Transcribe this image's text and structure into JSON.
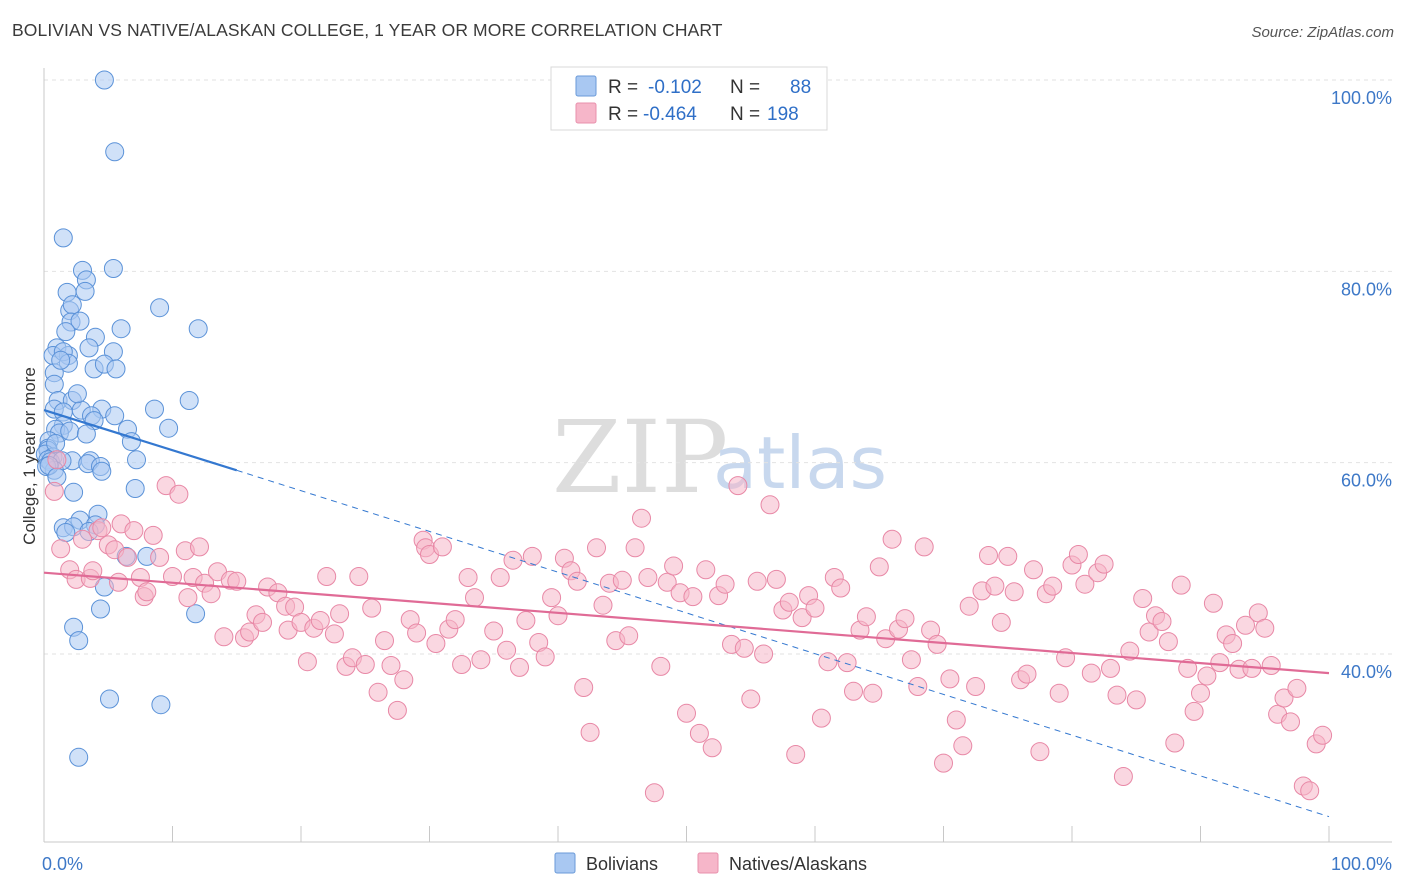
{
  "chart_data": {
    "type": "scatter",
    "title": "BOLIVIAN VS NATIVE/ALASKAN COLLEGE, 1 YEAR OR MORE CORRELATION CHART",
    "source": "Source: ZipAtlas.com",
    "xlabel": "",
    "ylabel": "College, 1 year or more",
    "xlim": [
      0,
      100
    ],
    "ylim": [
      22,
      102
    ],
    "x_tick_labels": [
      "0.0%",
      "100.0%"
    ],
    "y_ticks": [
      40,
      60,
      80,
      100
    ],
    "y_tick_labels": [
      "40.0%",
      "60.0%",
      "80.0%",
      "100.0%"
    ],
    "watermark": {
      "zip": "ZIP",
      "atlas": "atlas"
    },
    "legend": {
      "r_label": "R =",
      "n_label": "N =",
      "entries": [
        {
          "r": "-0.102",
          "n": "88",
          "color": "#a9c8f2"
        },
        {
          "r": "-0.464",
          "n": "198",
          "color": "#f6b6c9"
        }
      ]
    },
    "series": [
      {
        "name": "Bolivians",
        "color": "#a9c8f2",
        "stroke": "#5b92d8",
        "trend": {
          "x0": 0,
          "y0": 65.5,
          "x1": 15,
          "y1": 59.2,
          "dash_to_x": 100,
          "dash_to_y": 23,
          "color": "#3478d0"
        },
        "points": [
          [
            4.7,
            100
          ],
          [
            5.5,
            92.5
          ],
          [
            1.5,
            83.5
          ],
          [
            5.4,
            80.3
          ],
          [
            3.0,
            80.1
          ],
          [
            3.3,
            79.1
          ],
          [
            1.8,
            77.8
          ],
          [
            3.2,
            77.9
          ],
          [
            9.0,
            76.2
          ],
          [
            2.0,
            75.9
          ],
          [
            2.2,
            76.5
          ],
          [
            2.1,
            74.7
          ],
          [
            2.8,
            74.8
          ],
          [
            6.0,
            74
          ],
          [
            12,
            74
          ],
          [
            4.0,
            73.1
          ],
          [
            1.0,
            72
          ],
          [
            0.7,
            71.2
          ],
          [
            1.9,
            71.2
          ],
          [
            5.4,
            71.6
          ],
          [
            1.5,
            71.6
          ],
          [
            3.5,
            72
          ],
          [
            1.9,
            70.4
          ],
          [
            3.9,
            69.8
          ],
          [
            4.7,
            70.3
          ],
          [
            0.8,
            69.4
          ],
          [
            0.8,
            68.2
          ],
          [
            1.1,
            66.5
          ],
          [
            2.2,
            66.5
          ],
          [
            4.5,
            65.6
          ],
          [
            0.8,
            65.6
          ],
          [
            1.5,
            65.3
          ],
          [
            2.9,
            65.5
          ],
          [
            8.6,
            65.6
          ],
          [
            11.3,
            66.5
          ],
          [
            5.5,
            64.9
          ],
          [
            3.7,
            64.9
          ],
          [
            3.9,
            64.4
          ],
          [
            1.5,
            63.9
          ],
          [
            0.9,
            63.5
          ],
          [
            1.2,
            63.1
          ],
          [
            0.4,
            62.3
          ],
          [
            9.7,
            63.6
          ],
          [
            6.5,
            63.5
          ],
          [
            2.0,
            63.3
          ],
          [
            0.3,
            61.5
          ],
          [
            0.3,
            61.3
          ],
          [
            0.1,
            60.9
          ],
          [
            0.7,
            60.6
          ],
          [
            0.3,
            60.3
          ],
          [
            2.2,
            60.2
          ],
          [
            3.6,
            60.2
          ],
          [
            7.2,
            60.3
          ],
          [
            0.5,
            60.1
          ],
          [
            1.4,
            60.2
          ],
          [
            3.4,
            59.9
          ],
          [
            4.4,
            59.6
          ],
          [
            4.5,
            59.1
          ],
          [
            0.8,
            59.2
          ],
          [
            0.2,
            59.6
          ],
          [
            0.4,
            59.7
          ],
          [
            7.1,
            57.3
          ],
          [
            2.3,
            56.9
          ],
          [
            4.2,
            54.6
          ],
          [
            2.8,
            54.0
          ],
          [
            4.0,
            53.5
          ],
          [
            1.5,
            53.2
          ],
          [
            2.3,
            53.3
          ],
          [
            3.5,
            52.8
          ],
          [
            1.7,
            52.7
          ],
          [
            6.4,
            50.2
          ],
          [
            8.0,
            50.2
          ],
          [
            4.7,
            47
          ],
          [
            4.4,
            44.7
          ],
          [
            11.8,
            44.2
          ],
          [
            2.3,
            42.8
          ],
          [
            2.7,
            41.4
          ],
          [
            5.1,
            35.3
          ],
          [
            9.1,
            34.7
          ],
          [
            2.7,
            29.2
          ],
          [
            1.7,
            73.7
          ],
          [
            2.6,
            67.2
          ],
          [
            5.6,
            69.8
          ],
          [
            1.3,
            70.7
          ],
          [
            3.3,
            63.0
          ],
          [
            6.8,
            62.2
          ],
          [
            1.0,
            58.5
          ],
          [
            0.9,
            62.0
          ]
        ]
      },
      {
        "name": "Natives/Alaskans",
        "color": "#f6b6c9",
        "stroke": "#e888a6",
        "trend": {
          "x0": 0,
          "y0": 48.5,
          "x1": 100,
          "y1": 38.0,
          "color": "#e06b96"
        },
        "points": [
          [
            0.8,
            57
          ],
          [
            1.3,
            51
          ],
          [
            1.0,
            60.3
          ],
          [
            2,
            48.8
          ],
          [
            2.5,
            47.8
          ],
          [
            3,
            52
          ],
          [
            3.6,
            47.9
          ],
          [
            3.8,
            48.7
          ],
          [
            4.2,
            52.9
          ],
          [
            4.5,
            53.2
          ],
          [
            5,
            51.4
          ],
          [
            5.5,
            50.9
          ],
          [
            5.8,
            47.5
          ],
          [
            6,
            53.6
          ],
          [
            6.5,
            50.1
          ],
          [
            7,
            52.9
          ],
          [
            7.5,
            48
          ],
          [
            7.8,
            46
          ],
          [
            8,
            46.5
          ],
          [
            8.5,
            52.4
          ],
          [
            9,
            50.1
          ],
          [
            9.5,
            57.6
          ],
          [
            10,
            48.1
          ],
          [
            10.5,
            56.7
          ],
          [
            11,
            50.8
          ],
          [
            11.2,
            45.9
          ],
          [
            11.6,
            48
          ],
          [
            12.1,
            51.2
          ],
          [
            12.5,
            47.4
          ],
          [
            13,
            46.3
          ],
          [
            13.5,
            48.6
          ],
          [
            14,
            41.8
          ],
          [
            14.5,
            47.7
          ],
          [
            15,
            47.6
          ],
          [
            15.6,
            41.7
          ],
          [
            16,
            42.3
          ],
          [
            16.5,
            44.1
          ],
          [
            17,
            43.3
          ],
          [
            17.4,
            47
          ],
          [
            18.2,
            46.4
          ],
          [
            18.8,
            45.0
          ],
          [
            19,
            42.5
          ],
          [
            19.5,
            44.9
          ],
          [
            20,
            43.3
          ],
          [
            20.5,
            39.2
          ],
          [
            21,
            42.7
          ],
          [
            21.5,
            43.5
          ],
          [
            22,
            48.1
          ],
          [
            22.6,
            42.1
          ],
          [
            23,
            44.2
          ],
          [
            23.5,
            38.7
          ],
          [
            24,
            39.6
          ],
          [
            24.5,
            48.1
          ],
          [
            25,
            38.9
          ],
          [
            25.5,
            44.8
          ],
          [
            26,
            36.0
          ],
          [
            26.5,
            41.4
          ],
          [
            27,
            38.8
          ],
          [
            27.5,
            34.1
          ],
          [
            28,
            37.3
          ],
          [
            28.5,
            43.6
          ],
          [
            29,
            42.2
          ],
          [
            29.5,
            51.9
          ],
          [
            29.7,
            51.1
          ],
          [
            30,
            50.4
          ],
          [
            30.5,
            41.1
          ],
          [
            31,
            51.2
          ],
          [
            31.5,
            42.6
          ],
          [
            32,
            43.6
          ],
          [
            32.5,
            38.9
          ],
          [
            33,
            48
          ],
          [
            33.5,
            45.9
          ],
          [
            34,
            39.4
          ],
          [
            35,
            42.4
          ],
          [
            35.5,
            48
          ],
          [
            36,
            40.4
          ],
          [
            36.5,
            49.8
          ],
          [
            37,
            38.6
          ],
          [
            37.5,
            43.5
          ],
          [
            38,
            50.2
          ],
          [
            38.5,
            41.2
          ],
          [
            39,
            39.7
          ],
          [
            39.5,
            45.9
          ],
          [
            40,
            44.0
          ],
          [
            40.5,
            50.0
          ],
          [
            41,
            48.7
          ],
          [
            41.5,
            47.6
          ],
          [
            42,
            36.5
          ],
          [
            42.5,
            31.8
          ],
          [
            43,
            51.1
          ],
          [
            43.5,
            45.1
          ],
          [
            44,
            47.4
          ],
          [
            44.5,
            41.4
          ],
          [
            45,
            47.7
          ],
          [
            45.5,
            41.9
          ],
          [
            46,
            51.1
          ],
          [
            46.5,
            54.2
          ],
          [
            47,
            48.0
          ],
          [
            47.5,
            25.5
          ],
          [
            48,
            38.7
          ],
          [
            48.5,
            47.5
          ],
          [
            49,
            49.2
          ],
          [
            49.5,
            46.4
          ],
          [
            50,
            33.8
          ],
          [
            50.5,
            46.0
          ],
          [
            51,
            31.7
          ],
          [
            51.5,
            48.8
          ],
          [
            52,
            30.2
          ],
          [
            52.5,
            46.1
          ],
          [
            53,
            47.3
          ],
          [
            53.5,
            41.0
          ],
          [
            54,
            57.6
          ],
          [
            54.5,
            40.6
          ],
          [
            55,
            35.3
          ],
          [
            55.5,
            47.6
          ],
          [
            56,
            40.0
          ],
          [
            56.5,
            55.6
          ],
          [
            57,
            47.8
          ],
          [
            57.5,
            44.6
          ],
          [
            58,
            45.4
          ],
          [
            58.5,
            29.5
          ],
          [
            59,
            43.8
          ],
          [
            59.5,
            46.1
          ],
          [
            60,
            44.8
          ],
          [
            60.5,
            33.3
          ],
          [
            61,
            39.2
          ],
          [
            61.5,
            48.0
          ],
          [
            62,
            46.9
          ],
          [
            62.5,
            39.1
          ],
          [
            63,
            36.1
          ],
          [
            63.5,
            42.5
          ],
          [
            64,
            43.9
          ],
          [
            64.5,
            35.9
          ],
          [
            65,
            49.1
          ],
          [
            65.5,
            41.6
          ],
          [
            66,
            52.0
          ],
          [
            66.5,
            42.6
          ],
          [
            67,
            43.7
          ],
          [
            67.5,
            39.4
          ],
          [
            68,
            36.6
          ],
          [
            68.5,
            51.2
          ],
          [
            69,
            42.5
          ],
          [
            69.5,
            41.0
          ],
          [
            70,
            28.6
          ],
          [
            70.5,
            37.4
          ],
          [
            71,
            33.1
          ],
          [
            71.5,
            30.4
          ],
          [
            72,
            45.0
          ],
          [
            72.5,
            36.6
          ],
          [
            73,
            46.6
          ],
          [
            73.5,
            50.3
          ],
          [
            74,
            47.1
          ],
          [
            74.5,
            43.3
          ],
          [
            75,
            50.2
          ],
          [
            75.5,
            46.5
          ],
          [
            76,
            37.3
          ],
          [
            76.5,
            37.9
          ],
          [
            77,
            48.8
          ],
          [
            77.5,
            29.8
          ],
          [
            78,
            46.3
          ],
          [
            78.5,
            47.1
          ],
          [
            79,
            35.9
          ],
          [
            79.5,
            39.6
          ],
          [
            80,
            49.3
          ],
          [
            80.5,
            50.4
          ],
          [
            81,
            47.3
          ],
          [
            81.5,
            38.0
          ],
          [
            82,
            48.5
          ],
          [
            82.5,
            49.4
          ],
          [
            83,
            38.5
          ],
          [
            83.5,
            35.7
          ],
          [
            84,
            27.2
          ],
          [
            84.5,
            40.3
          ],
          [
            85,
            35.2
          ],
          [
            85.5,
            45.8
          ],
          [
            86,
            42.3
          ],
          [
            86.5,
            44.0
          ],
          [
            87,
            43.4
          ],
          [
            87.5,
            41.3
          ],
          [
            88,
            30.7
          ],
          [
            88.5,
            47.2
          ],
          [
            89,
            38.5
          ],
          [
            89.5,
            34.0
          ],
          [
            90,
            35.9
          ],
          [
            90.5,
            37.7
          ],
          [
            91,
            45.3
          ],
          [
            91.5,
            39.1
          ],
          [
            92,
            42.0
          ],
          [
            92.5,
            41.1
          ],
          [
            93,
            38.4
          ],
          [
            93.5,
            43.0
          ],
          [
            94,
            38.5
          ],
          [
            94.5,
            44.3
          ],
          [
            95,
            42.7
          ],
          [
            95.5,
            38.8
          ],
          [
            96,
            33.7
          ],
          [
            96.5,
            35.4
          ],
          [
            97,
            32.9
          ],
          [
            97.5,
            36.4
          ],
          [
            98,
            26.2
          ],
          [
            98.5,
            25.7
          ],
          [
            99,
            30.6
          ],
          [
            99.5,
            31.5
          ]
        ]
      }
    ],
    "bottom_legend": [
      "Bolivians",
      "Natives/Alaskans"
    ]
  }
}
